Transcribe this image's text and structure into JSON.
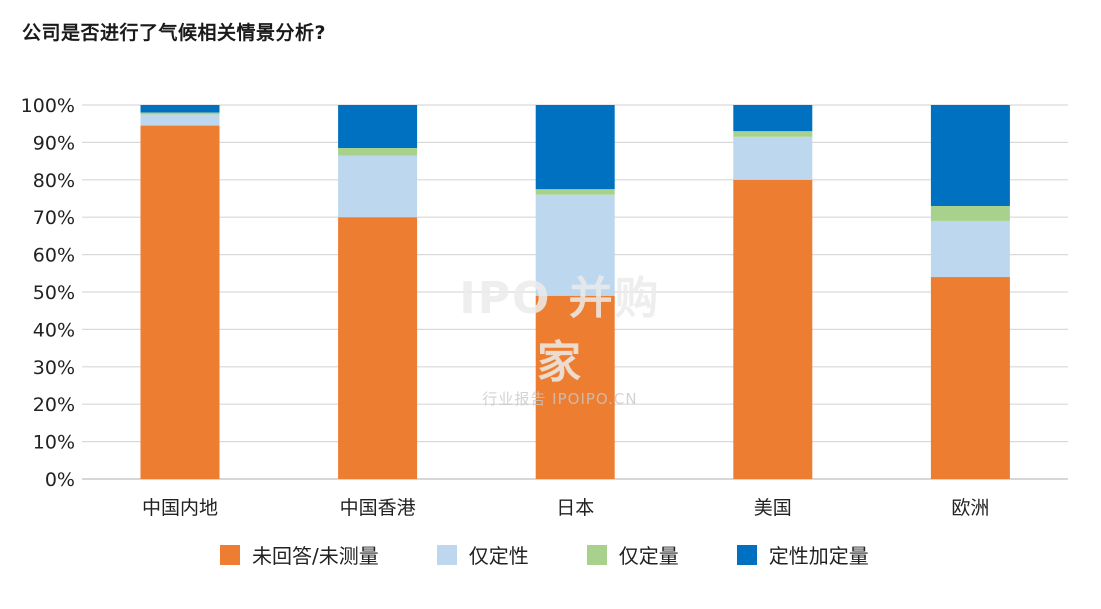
{
  "chart_data": {
    "type": "bar",
    "stacked": true,
    "title": "公司是否进行了气候相关情景分析?",
    "categories": [
      "中国内地",
      "中国香港",
      "日本",
      "美国",
      "欧洲"
    ],
    "y_ticks": [
      "0%",
      "10%",
      "20%",
      "30%",
      "40%",
      "50%",
      "60%",
      "70%",
      "80%",
      "90%",
      "100%"
    ],
    "ylim": [
      0,
      100
    ],
    "grid": true,
    "legend_position": "bottom",
    "series": [
      {
        "name": "未回答/未测量",
        "color": "#ED7D31",
        "values": [
          94.5,
          70,
          49,
          80,
          54
        ]
      },
      {
        "name": "仅定性",
        "color": "#BDD7EE",
        "values": [
          3,
          16.5,
          27,
          11.5,
          15
        ]
      },
      {
        "name": "仅定量",
        "color": "#A9D18E",
        "values": [
          0.5,
          2,
          1.5,
          1.5,
          4
        ]
      },
      {
        "name": "定性加定量",
        "color": "#0070C0",
        "values": [
          2,
          11.5,
          22.5,
          7,
          27
        ]
      }
    ]
  },
  "watermark": {
    "main": "IPO 并购家",
    "sub": "行业报告 IPOIPO.CN"
  }
}
